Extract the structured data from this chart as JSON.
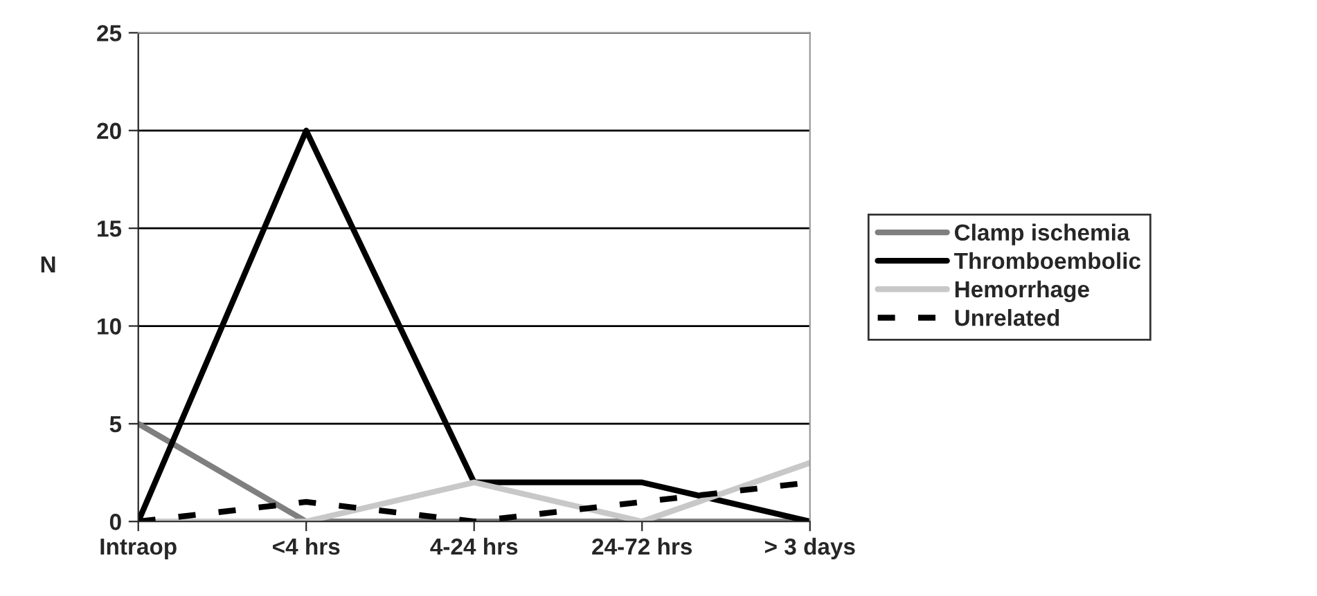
{
  "chart_data": {
    "type": "line",
    "ylabel": "N",
    "categories": [
      "Intraop",
      "<4 hrs",
      "4-24 hrs",
      "24-72 hrs",
      "> 3 days"
    ],
    "series": [
      {
        "name": "Clamp ischemia",
        "color": "#7f7f7f",
        "values": [
          5,
          0,
          0,
          0,
          0
        ]
      },
      {
        "name": "Thromboembolic",
        "color": "#000000",
        "values": [
          0,
          20,
          2,
          2,
          0
        ]
      },
      {
        "name": "Hemorrhage",
        "color": "#c8c8c8",
        "values": [
          0,
          0,
          2,
          0,
          3
        ]
      },
      {
        "name": "Unrelated",
        "color": "#000000",
        "values": [
          0,
          1,
          0,
          1,
          2
        ],
        "line_style": "dashed"
      }
    ],
    "ylim": [
      0,
      25
    ],
    "yticks": [
      0,
      5,
      10,
      15,
      20,
      25
    ],
    "grid": "y",
    "legend": "right",
    "marker": "none"
  }
}
